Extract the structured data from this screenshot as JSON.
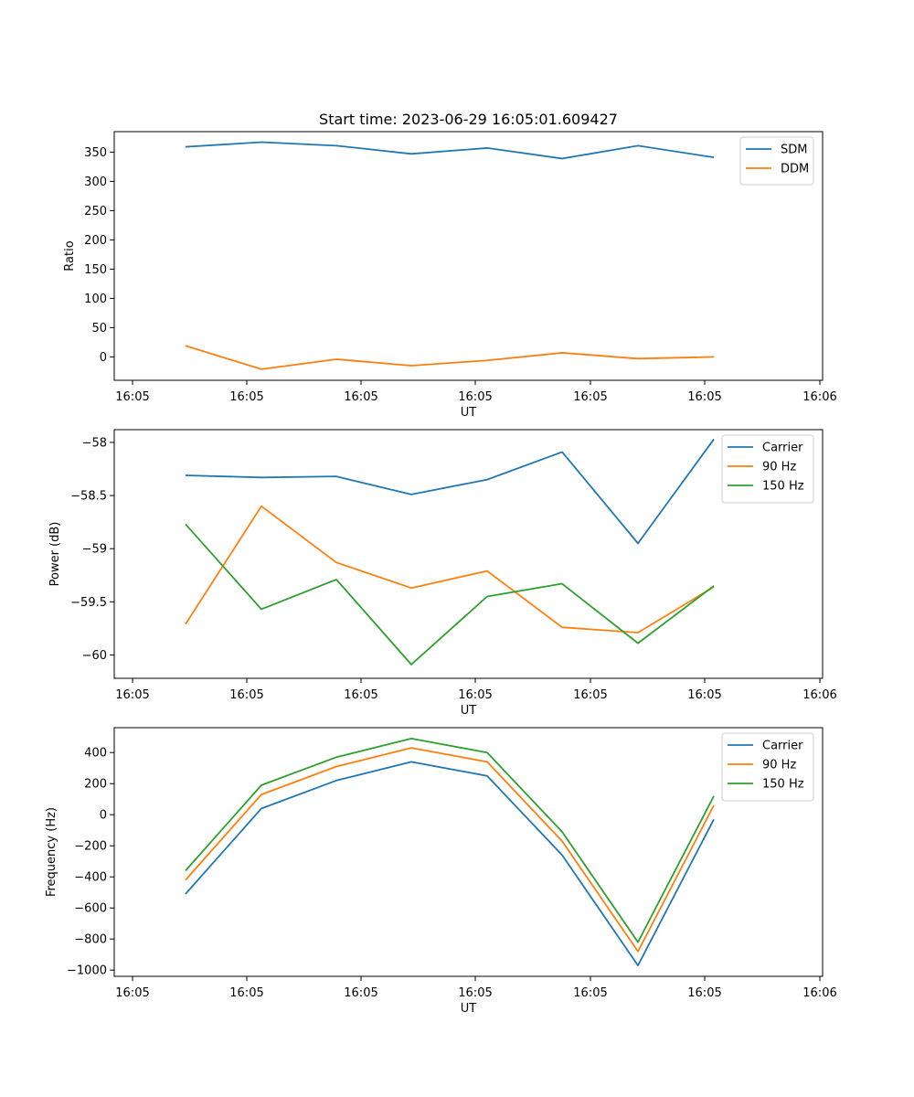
{
  "title": "Start time: 2023-06-29 16:05:01.609427",
  "chart_data": [
    {
      "type": "line",
      "xlabel": "UT",
      "ylabel": "Ratio",
      "xticks": [
        "16:05",
        "16:05",
        "16:05",
        "16:05",
        "16:05",
        "16:05",
        "16:06"
      ],
      "yticks": [
        0,
        50,
        100,
        150,
        200,
        250,
        300,
        350
      ],
      "ylim": [
        -40,
        385
      ],
      "legend": "top-right",
      "grid": false,
      "series": [
        {
          "name": "SDM",
          "color": "#1f77b4",
          "values": [
            359,
            367,
            361,
            347,
            357,
            339,
            361,
            341
          ]
        },
        {
          "name": "DDM",
          "color": "#ff7f0e",
          "values": [
            19,
            -21,
            -4,
            -15,
            -6,
            7,
            -3,
            0
          ]
        }
      ]
    },
    {
      "type": "line",
      "xlabel": "UT",
      "ylabel": "Power (dB)",
      "xticks": [
        "16:05",
        "16:05",
        "16:05",
        "16:05",
        "16:05",
        "16:05",
        "16:06"
      ],
      "yticks": [
        -60.0,
        -59.5,
        -59.0,
        -58.5,
        -58.0
      ],
      "ylim": [
        -60.22,
        -57.88
      ],
      "legend": "top-right",
      "grid": false,
      "series": [
        {
          "name": "Carrier",
          "color": "#1f77b4",
          "values": [
            -58.31,
            -58.33,
            -58.32,
            -58.49,
            -58.35,
            -58.09,
            -58.95,
            -57.97
          ]
        },
        {
          "name": "90 Hz",
          "color": "#ff7f0e",
          "values": [
            -59.71,
            -58.6,
            -59.13,
            -59.37,
            -59.21,
            -59.74,
            -59.79,
            -59.36
          ]
        },
        {
          "name": "150 Hz",
          "color": "#2ca02c",
          "values": [
            -58.77,
            -59.57,
            -59.29,
            -60.09,
            -59.45,
            -59.33,
            -59.89,
            -59.35
          ]
        }
      ]
    },
    {
      "type": "line",
      "xlabel": "UT",
      "ylabel": "Frequency (Hz)",
      "xticks": [
        "16:05",
        "16:05",
        "16:05",
        "16:05",
        "16:05",
        "16:05",
        "16:06"
      ],
      "yticks": [
        -1000,
        -800,
        -600,
        -400,
        -200,
        0,
        200,
        400
      ],
      "ylim": [
        -1040,
        560
      ],
      "legend": "top-right",
      "grid": false,
      "series": [
        {
          "name": "Carrier",
          "color": "#1f77b4",
          "values": [
            -510,
            40,
            220,
            340,
            250,
            -260,
            -970,
            -30
          ]
        },
        {
          "name": "90 Hz",
          "color": "#ff7f0e",
          "values": [
            -420,
            130,
            310,
            430,
            340,
            -170,
            -880,
            60
          ]
        },
        {
          "name": "150 Hz",
          "color": "#2ca02c",
          "values": [
            -360,
            190,
            370,
            490,
            400,
            -110,
            -820,
            120
          ]
        }
      ]
    }
  ]
}
